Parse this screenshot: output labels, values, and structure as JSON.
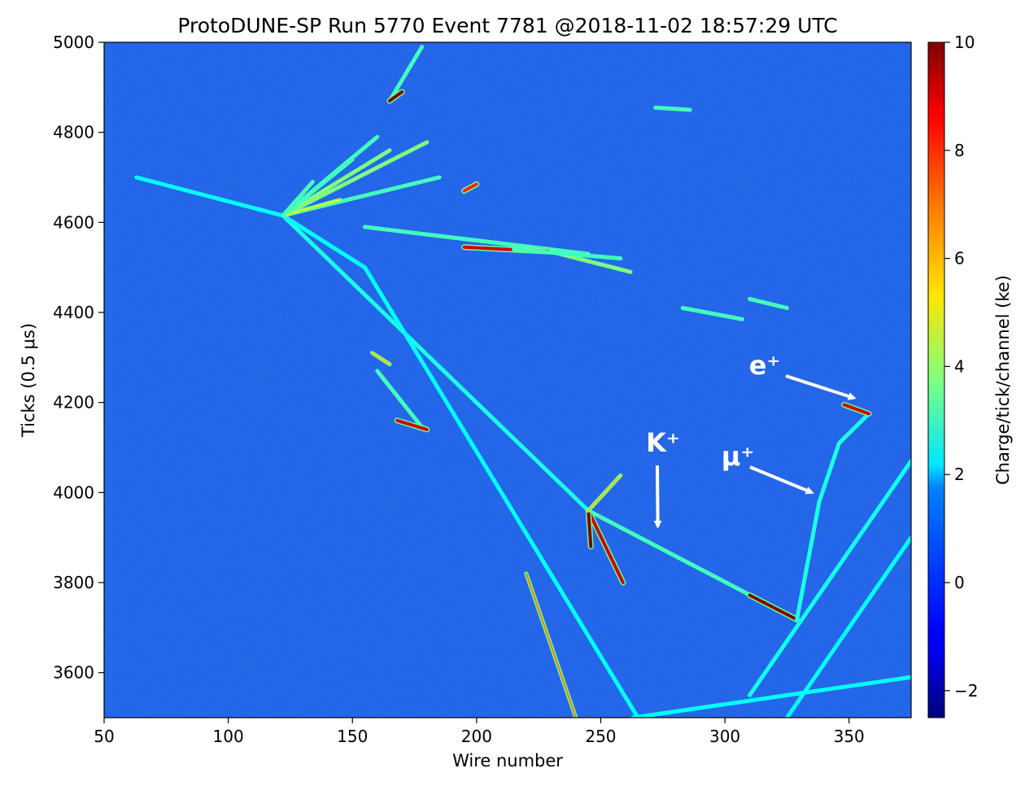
{
  "chart_data": {
    "type": "heatmap",
    "title": "ProtoDUNE-SP Run 5770 Event 7781 @2018-11-02 18:57:29 UTC",
    "xlabel": "Wire number",
    "ylabel": "Ticks (0.5 μs)",
    "xlim": [
      50,
      375
    ],
    "ylim": [
      3500,
      5000
    ],
    "x_ticks": [
      50,
      100,
      150,
      200,
      250,
      300,
      350
    ],
    "y_ticks": [
      3600,
      3800,
      4000,
      4200,
      4400,
      4600,
      4800,
      5000
    ],
    "colorbar": {
      "label": "Charge/tick/channel (ke)",
      "range": [
        -2.5,
        10
      ],
      "colormap": "jet",
      "ticks": [
        -2,
        0,
        2,
        4,
        6,
        8,
        10
      ],
      "tick_labels": [
        "−2",
        "0",
        "2",
        "4",
        "6",
        "8",
        "10"
      ]
    },
    "background_value": 0.5,
    "tracks": [
      {
        "name": "incoming beam track",
        "points": [
          [
            63,
            4700
          ],
          [
            122,
            4615
          ]
        ],
        "charge": 2.2
      },
      {
        "name": "long track to kaon decay vertex",
        "points": [
          [
            122,
            4615
          ],
          [
            245,
            3960
          ]
        ],
        "charge": 2.5
      },
      {
        "name": "long track to bottom",
        "points": [
          [
            122,
            4615
          ],
          [
            155,
            4500
          ],
          [
            265,
            3500
          ]
        ],
        "charge": 2.2
      },
      {
        "name": "kaon track",
        "points": [
          [
            245,
            3960
          ],
          [
            329,
            3718
          ]
        ],
        "charge": 3.0
      },
      {
        "name": "kaon stopping end",
        "points": [
          [
            310,
            3772
          ],
          [
            329,
            3718
          ]
        ],
        "charge": 10
      },
      {
        "name": "muon track",
        "points": [
          [
            329,
            3718
          ],
          [
            338,
            3980
          ],
          [
            346,
            4110
          ],
          [
            358,
            4175
          ]
        ],
        "charge": 2.5
      },
      {
        "name": "positron shower start",
        "points": [
          [
            348,
            4195
          ],
          [
            358,
            4175
          ]
        ],
        "charge": 9
      },
      {
        "name": "heavily ionizing track",
        "points": [
          [
            220,
            3820
          ],
          [
            240,
            3500
          ]
        ],
        "charge": 7
      },
      {
        "name": "heavily ionizing branch",
        "points": [
          [
            245,
            3960
          ],
          [
            259,
            3800
          ]
        ],
        "charge": 9
      },
      {
        "name": "vertex blob",
        "points": [
          [
            245,
            3960
          ],
          [
            246,
            3880
          ]
        ],
        "charge": 10
      },
      {
        "name": "short upward track",
        "points": [
          [
            245,
            3960
          ],
          [
            258,
            4038
          ]
        ],
        "charge": 6
      },
      {
        "name": "bottom crossing track",
        "points": [
          [
            263,
            3500
          ],
          [
            375,
            3590
          ]
        ],
        "charge": 2.2
      },
      {
        "name": "lower right track",
        "points": [
          [
            310,
            3550
          ],
          [
            375,
            4070
          ]
        ],
        "charge": 2.4
      },
      {
        "name": "lower right track 2",
        "points": [
          [
            325,
            3500
          ],
          [
            375,
            3900
          ]
        ],
        "charge": 2.2
      },
      {
        "name": "shower spray 1",
        "points": [
          [
            122,
            4615
          ],
          [
            180,
            4778
          ]
        ],
        "charge": 4
      },
      {
        "name": "shower spray 2",
        "points": [
          [
            122,
            4615
          ],
          [
            165,
            4760
          ]
        ],
        "charge": 4
      },
      {
        "name": "shower spray 3",
        "points": [
          [
            122,
            4615
          ],
          [
            185,
            4700
          ]
        ],
        "charge": 3
      },
      {
        "name": "shower spray 4",
        "points": [
          [
            122,
            4615
          ],
          [
            160,
            4790
          ]
        ],
        "charge": 3
      },
      {
        "name": "shower spray 5",
        "points": [
          [
            122,
            4615
          ],
          [
            150,
            4740
          ]
        ],
        "charge": 3
      },
      {
        "name": "shower spray 6",
        "points": [
          [
            122,
            4615
          ],
          [
            145,
            4650
          ]
        ],
        "charge": 5
      },
      {
        "name": "shower spray 7",
        "points": [
          [
            122,
            4615
          ],
          [
            134,
            4690
          ]
        ],
        "charge": 3
      },
      {
        "name": "secondary shower trunk",
        "points": [
          [
            155,
            4590
          ],
          [
            245,
            4530
          ]
        ],
        "charge": 3
      },
      {
        "name": "secondary shower core",
        "points": [
          [
            195,
            4545
          ],
          [
            230,
            4535
          ]
        ],
        "charge": 9
      },
      {
        "name": "secondary shower tail",
        "points": [
          [
            230,
            4535
          ],
          [
            262,
            4490
          ]
        ],
        "charge": 4
      },
      {
        "name": "secondary shower tail 2",
        "points": [
          [
            215,
            4540
          ],
          [
            258,
            4520
          ]
        ],
        "charge": 3
      },
      {
        "name": "delta ray top",
        "points": [
          [
            165,
            4870
          ],
          [
            178,
            4990
          ]
        ],
        "charge": 3
      },
      {
        "name": "top blob",
        "points": [
          [
            165,
            4870
          ],
          [
            170,
            4890
          ]
        ],
        "charge": 10
      },
      {
        "name": "upper right segment",
        "points": [
          [
            272,
            4855
          ],
          [
            286,
            4850
          ]
        ],
        "charge": 3
      },
      {
        "name": "mid segment",
        "points": [
          [
            283,
            4410
          ],
          [
            307,
            4385
          ]
        ],
        "charge": 3
      },
      {
        "name": "mid segment 2",
        "points": [
          [
            310,
            4430
          ],
          [
            325,
            4410
          ]
        ],
        "charge": 3
      },
      {
        "name": "lower left segment",
        "points": [
          [
            158,
            4310
          ],
          [
            165,
            4285
          ]
        ],
        "charge": 6
      },
      {
        "name": "lower left branch",
        "points": [
          [
            160,
            4270
          ],
          [
            178,
            4145
          ]
        ],
        "charge": 3
      },
      {
        "name": "lower left blob",
        "points": [
          [
            168,
            4160
          ],
          [
            180,
            4140
          ]
        ],
        "charge": 9
      },
      {
        "name": "segment near kaon",
        "points": [
          [
            200,
            4685
          ],
          [
            195,
            4670
          ]
        ],
        "charge": 8
      }
    ],
    "annotations": [
      {
        "text": "K⁺",
        "arrow_to": [
          273,
          3925
        ]
      },
      {
        "text": "μ⁺",
        "arrow_to": [
          335,
          4000
        ]
      },
      {
        "text": "e⁺",
        "arrow_to": [
          352,
          4210
        ]
      }
    ]
  },
  "icons": [
    "arrow-icon"
  ],
  "colors": {
    "background": "#1f5fe6",
    "text": "#000000",
    "annotation": "#ffffff"
  }
}
